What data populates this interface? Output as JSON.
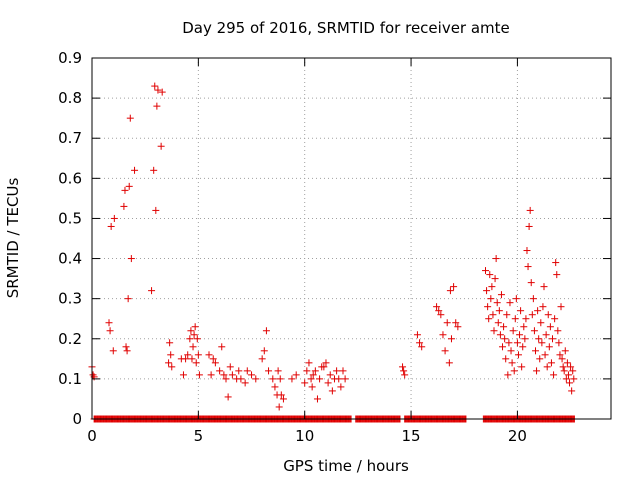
{
  "chart_data": {
    "type": "scatter",
    "title": "Day 295 of 2016, SRMTID for receiver amte",
    "xlabel": "GPS time / hours",
    "ylabel": "SRMTID / TECUs",
    "xlim": [
      0,
      24.4
    ],
    "ylim": [
      0,
      0.9
    ],
    "x_ticks": [
      0,
      5,
      10,
      15,
      20
    ],
    "x_tick_labels": [
      "0",
      "5",
      "10",
      "15",
      "20"
    ],
    "y_ticks": [
      0,
      0.1,
      0.2,
      0.3,
      0.4,
      0.5,
      0.6,
      0.7,
      0.8,
      0.9
    ],
    "y_tick_labels": [
      "0",
      "0.1",
      "0.2",
      "0.3",
      "0.4",
      "0.5",
      "0.6",
      "0.7",
      "0.8",
      "0.9"
    ],
    "grid": true,
    "marker": "plus",
    "series": [
      {
        "name": "SRMTID",
        "color": "#e00000",
        "points": [
          [
            0.0,
            0.13
          ],
          [
            0.05,
            0.11
          ],
          [
            0.1,
            0.105
          ],
          [
            0.8,
            0.24
          ],
          [
            0.85,
            0.22
          ],
          [
            0.9,
            0.48
          ],
          [
            1.0,
            0.17
          ],
          [
            1.05,
            0.5
          ],
          [
            1.5,
            0.53
          ],
          [
            1.55,
            0.57
          ],
          [
            1.6,
            0.18
          ],
          [
            1.65,
            0.17
          ],
          [
            1.7,
            0.3
          ],
          [
            1.75,
            0.58
          ],
          [
            1.8,
            0.75
          ],
          [
            1.85,
            0.4
          ],
          [
            2.0,
            0.62
          ],
          [
            2.8,
            0.32
          ],
          [
            2.9,
            0.62
          ],
          [
            2.95,
            0.83
          ],
          [
            3.0,
            0.52
          ],
          [
            3.05,
            0.78
          ],
          [
            3.1,
            0.82
          ],
          [
            3.25,
            0.68
          ],
          [
            3.3,
            0.815
          ],
          [
            3.6,
            0.14
          ],
          [
            3.65,
            0.19
          ],
          [
            3.7,
            0.16
          ],
          [
            3.75,
            0.13
          ],
          [
            4.2,
            0.15
          ],
          [
            4.3,
            0.11
          ],
          [
            4.4,
            0.15
          ],
          [
            4.5,
            0.16
          ],
          [
            4.6,
            0.2
          ],
          [
            4.65,
            0.22
          ],
          [
            4.7,
            0.15
          ],
          [
            4.75,
            0.18
          ],
          [
            4.8,
            0.21
          ],
          [
            4.85,
            0.23
          ],
          [
            4.9,
            0.14
          ],
          [
            4.95,
            0.2
          ],
          [
            5.0,
            0.16
          ],
          [
            5.05,
            0.11
          ],
          [
            5.5,
            0.16
          ],
          [
            5.6,
            0.11
          ],
          [
            5.7,
            0.15
          ],
          [
            5.8,
            0.14
          ],
          [
            6.0,
            0.12
          ],
          [
            6.1,
            0.18
          ],
          [
            6.2,
            0.11
          ],
          [
            6.3,
            0.1
          ],
          [
            6.4,
            0.055
          ],
          [
            6.5,
            0.13
          ],
          [
            6.6,
            0.11
          ],
          [
            6.8,
            0.1
          ],
          [
            6.9,
            0.12
          ],
          [
            7.0,
            0.1
          ],
          [
            7.2,
            0.09
          ],
          [
            7.3,
            0.12
          ],
          [
            7.5,
            0.11
          ],
          [
            7.7,
            0.1
          ],
          [
            8.0,
            0.15
          ],
          [
            8.1,
            0.17
          ],
          [
            8.2,
            0.22
          ],
          [
            8.3,
            0.12
          ],
          [
            8.5,
            0.1
          ],
          [
            8.6,
            0.08
          ],
          [
            8.7,
            0.06
          ],
          [
            8.75,
            0.12
          ],
          [
            8.8,
            0.03
          ],
          [
            8.85,
            0.1
          ],
          [
            8.9,
            0.06
          ],
          [
            9.0,
            0.05
          ],
          [
            9.4,
            0.1
          ],
          [
            9.6,
            0.11
          ],
          [
            10.0,
            0.09
          ],
          [
            10.1,
            0.12
          ],
          [
            10.2,
            0.14
          ],
          [
            10.3,
            0.1
          ],
          [
            10.35,
            0.08
          ],
          [
            10.4,
            0.11
          ],
          [
            10.5,
            0.12
          ],
          [
            10.6,
            0.05
          ],
          [
            10.7,
            0.1
          ],
          [
            10.8,
            0.13
          ],
          [
            10.9,
            0.13
          ],
          [
            11.0,
            0.14
          ],
          [
            11.1,
            0.09
          ],
          [
            11.2,
            0.11
          ],
          [
            11.3,
            0.07
          ],
          [
            11.4,
            0.1
          ],
          [
            11.5,
            0.12
          ],
          [
            11.6,
            0.1
          ],
          [
            11.7,
            0.08
          ],
          [
            11.8,
            0.12
          ],
          [
            11.9,
            0.1
          ],
          [
            14.6,
            0.13
          ],
          [
            14.65,
            0.12
          ],
          [
            14.7,
            0.11
          ],
          [
            15.3,
            0.21
          ],
          [
            15.4,
            0.19
          ],
          [
            15.5,
            0.18
          ],
          [
            16.2,
            0.28
          ],
          [
            16.3,
            0.27
          ],
          [
            16.4,
            0.26
          ],
          [
            16.5,
            0.21
          ],
          [
            16.6,
            0.17
          ],
          [
            16.7,
            0.24
          ],
          [
            16.8,
            0.14
          ],
          [
            16.85,
            0.32
          ],
          [
            16.9,
            0.2
          ],
          [
            17.0,
            0.33
          ],
          [
            17.1,
            0.24
          ],
          [
            17.2,
            0.23
          ],
          [
            18.5,
            0.37
          ],
          [
            18.55,
            0.32
          ],
          [
            18.6,
            0.28
          ],
          [
            18.65,
            0.25
          ],
          [
            18.7,
            0.36
          ],
          [
            18.75,
            0.3
          ],
          [
            18.8,
            0.33
          ],
          [
            18.85,
            0.26
          ],
          [
            18.9,
            0.22
          ],
          [
            18.95,
            0.35
          ],
          [
            19.0,
            0.4
          ],
          [
            19.05,
            0.29
          ],
          [
            19.1,
            0.24
          ],
          [
            19.15,
            0.27
          ],
          [
            19.2,
            0.21
          ],
          [
            19.25,
            0.31
          ],
          [
            19.3,
            0.18
          ],
          [
            19.35,
            0.23
          ],
          [
            19.4,
            0.2
          ],
          [
            19.45,
            0.15
          ],
          [
            19.5,
            0.26
          ],
          [
            19.55,
            0.11
          ],
          [
            19.6,
            0.19
          ],
          [
            19.65,
            0.29
          ],
          [
            19.7,
            0.17
          ],
          [
            19.75,
            0.14
          ],
          [
            19.8,
            0.22
          ],
          [
            19.85,
            0.12
          ],
          [
            19.9,
            0.25
          ],
          [
            19.95,
            0.3
          ],
          [
            20.0,
            0.19
          ],
          [
            20.05,
            0.16
          ],
          [
            20.1,
            0.21
          ],
          [
            20.15,
            0.27
          ],
          [
            20.2,
            0.13
          ],
          [
            20.25,
            0.18
          ],
          [
            20.3,
            0.23
          ],
          [
            20.35,
            0.2
          ],
          [
            20.4,
            0.25
          ],
          [
            20.45,
            0.42
          ],
          [
            20.5,
            0.38
          ],
          [
            20.55,
            0.48
          ],
          [
            20.6,
            0.52
          ],
          [
            20.65,
            0.34
          ],
          [
            20.7,
            0.26
          ],
          [
            20.75,
            0.3
          ],
          [
            20.8,
            0.22
          ],
          [
            20.85,
            0.17
          ],
          [
            20.9,
            0.12
          ],
          [
            20.95,
            0.27
          ],
          [
            21.0,
            0.2
          ],
          [
            21.05,
            0.15
          ],
          [
            21.1,
            0.24
          ],
          [
            21.15,
            0.19
          ],
          [
            21.2,
            0.28
          ],
          [
            21.25,
            0.33
          ],
          [
            21.3,
            0.16
          ],
          [
            21.35,
            0.21
          ],
          [
            21.4,
            0.13
          ],
          [
            21.45,
            0.26
          ],
          [
            21.5,
            0.18
          ],
          [
            21.55,
            0.23
          ],
          [
            21.6,
            0.14
          ],
          [
            21.65,
            0.2
          ],
          [
            21.7,
            0.11
          ],
          [
            21.75,
            0.25
          ],
          [
            21.8,
            0.39
          ],
          [
            21.85,
            0.36
          ],
          [
            21.9,
            0.22
          ],
          [
            21.95,
            0.19
          ],
          [
            22.0,
            0.16
          ],
          [
            22.05,
            0.28
          ],
          [
            22.1,
            0.15
          ],
          [
            22.15,
            0.13
          ],
          [
            22.2,
            0.12
          ],
          [
            22.25,
            0.17
          ],
          [
            22.3,
            0.1
          ],
          [
            22.35,
            0.14
          ],
          [
            22.4,
            0.11
          ],
          [
            22.45,
            0.09
          ],
          [
            22.5,
            0.13
          ],
          [
            22.55,
            0.07
          ],
          [
            22.6,
            0.12
          ],
          [
            22.65,
            0.1
          ]
        ],
        "zeros_x_ranges": [
          [
            0.1,
            12.2
          ],
          [
            12.4,
            14.5
          ],
          [
            14.7,
            17.6
          ],
          [
            18.4,
            22.7
          ]
        ],
        "zeros_y": 0
      }
    ]
  }
}
